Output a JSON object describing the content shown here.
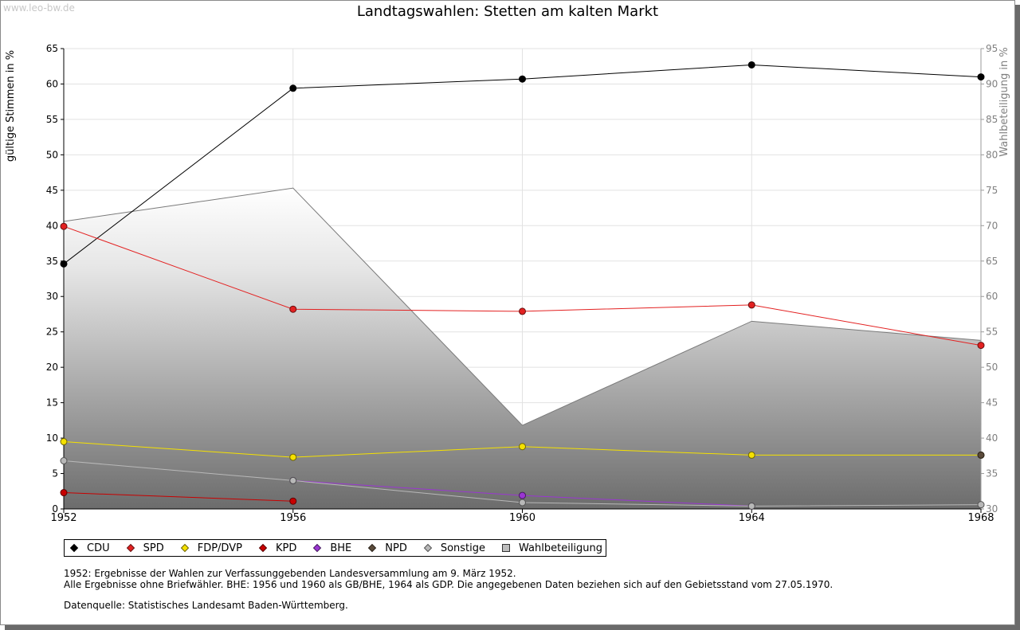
{
  "watermark": "www.leo-bw.de",
  "chart_data": {
    "type": "line",
    "title": "Landtagswahlen: Stetten am kalten Markt",
    "ylabel": "gültige Stimmen in %",
    "y2label": "Wahlbeteiligung in %",
    "ylim": [
      0,
      65
    ],
    "y2lim": [
      30,
      95
    ],
    "yticks": [
      "0",
      "5",
      "10",
      "15",
      "20",
      "25",
      "30",
      "35",
      "40",
      "45",
      "50",
      "55",
      "60",
      "65"
    ],
    "y2ticks": [
      "30",
      "35",
      "40",
      "45",
      "50",
      "55",
      "60",
      "65",
      "70",
      "75",
      "80",
      "85",
      "90",
      "95"
    ],
    "categories": [
      "1952",
      "1956",
      "1960",
      "1964",
      "1968"
    ],
    "grid": true,
    "legend_position": "bottom",
    "series": [
      {
        "name": "CDU",
        "color": "#000000",
        "values": [
          34.6,
          59.4,
          60.7,
          62.7,
          61.0
        ]
      },
      {
        "name": "SPD",
        "color": "#e32121",
        "values": [
          39.9,
          28.2,
          27.9,
          28.8,
          23.1
        ]
      },
      {
        "name": "FDP/DVP",
        "color": "#f5e100",
        "values": [
          9.5,
          7.3,
          8.8,
          7.6,
          7.6
        ]
      },
      {
        "name": "KPD",
        "color": "#c80000",
        "values": [
          2.3,
          1.1,
          null,
          null,
          null
        ]
      },
      {
        "name": "BHE",
        "color": "#9a36d2",
        "values": [
          null,
          4.0,
          1.9,
          0.4,
          null
        ]
      },
      {
        "name": "NPD",
        "color": "#5a4a3a",
        "values": [
          null,
          null,
          null,
          null,
          7.6
        ]
      },
      {
        "name": "Sonstige",
        "color": "#b8b8b8",
        "values": [
          6.8,
          4.0,
          0.9,
          0.4,
          0.6
        ]
      }
    ],
    "turnout": {
      "name": "Wahlbeteiligung",
      "axis": "right",
      "values": [
        70.6,
        75.3,
        41.8,
        56.5,
        53.8
      ]
    }
  },
  "notes": {
    "line1": "1952: Ergebnisse der Wahlen zur Verfassunggebenden Landesversammlung am 9. März 1952.",
    "line2": "Alle Ergebnisse ohne Briefwähler. BHE: 1956 und 1960 als GB/BHE, 1964 als GDP. Die angegebenen Daten beziehen sich auf den Gebietsstand vom 27.05.1970.",
    "source": "Datenquelle: Statistisches Landesamt Baden-Württemberg."
  }
}
